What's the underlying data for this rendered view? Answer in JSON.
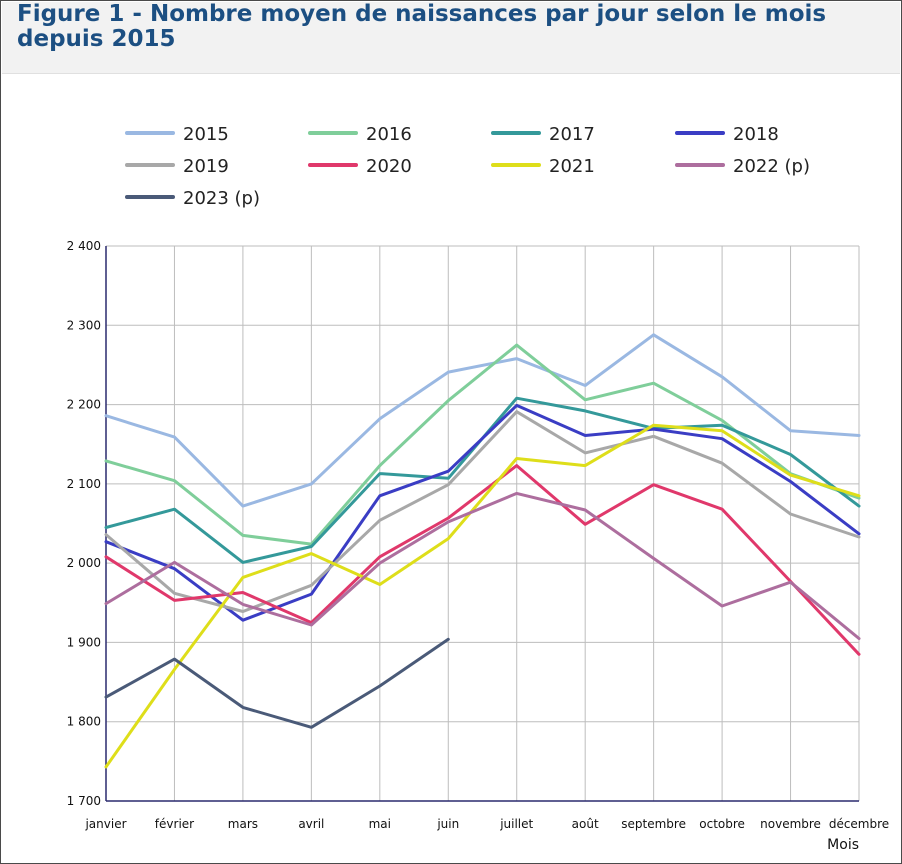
{
  "header": {
    "title": "Figure 1 - Nombre moyen de naissances par jour selon le mois depuis 2015"
  },
  "chart_data": {
    "type": "line",
    "title": "Figure 1 - Nombre moyen de naissances par jour selon le mois depuis 2015",
    "xlabel": "Mois",
    "ylabel": "",
    "categories": [
      "janvier",
      "février",
      "mars",
      "avril",
      "mai",
      "juin",
      "juillet",
      "août",
      "septembre",
      "octobre",
      "novembre",
      "décembre"
    ],
    "ylim": [
      1700,
      2400
    ],
    "yticks": [
      1700,
      1800,
      1900,
      2000,
      2100,
      2200,
      2300,
      2400
    ],
    "ytick_labels": [
      "1 700",
      "1 800",
      "1 900",
      "2 000",
      "2 100",
      "2 200",
      "2 300",
      "2 400"
    ],
    "grid": true,
    "legend_position": "top",
    "series": [
      {
        "name": "2015",
        "color": "#9ab8e2",
        "values": [
          2186,
          2159,
          2072,
          2100,
          2182,
          2241,
          2258,
          2224,
          2288,
          2235,
          2167,
          2161
        ]
      },
      {
        "name": "2016",
        "color": "#7fce9a",
        "values": [
          2129,
          2104,
          2035,
          2024,
          2123,
          2205,
          2275,
          2206,
          2227,
          2180,
          2113,
          2082
        ]
      },
      {
        "name": "2017",
        "color": "#34999a",
        "values": [
          2045,
          2068,
          2001,
          2021,
          2113,
          2107,
          2208,
          2192,
          2170,
          2174,
          2137,
          2072
        ]
      },
      {
        "name": "2018",
        "color": "#3a3dc4",
        "values": [
          2027,
          1993,
          1928,
          1961,
          2085,
          2116,
          2199,
          2161,
          2169,
          2157,
          2103,
          2037
        ]
      },
      {
        "name": "2019",
        "color": "#a8a8a8",
        "values": [
          2036,
          1962,
          1939,
          1972,
          2054,
          2099,
          2191,
          2139,
          2160,
          2126,
          2062,
          2033
        ]
      },
      {
        "name": "2020",
        "color": "#e0386b",
        "values": [
          2008,
          1953,
          1963,
          1925,
          2008,
          2057,
          2123,
          2049,
          2099,
          2068,
          1977,
          1885
        ]
      },
      {
        "name": "2021",
        "color": "#dede1a",
        "values": [
          1743,
          1866,
          1982,
          2012,
          1973,
          2031,
          2132,
          2123,
          2174,
          2167,
          2111,
          2085
        ]
      },
      {
        "name": "2022 (p)",
        "color": "#ad6e9e",
        "values": [
          1949,
          2001,
          1948,
          1922,
          2000,
          2052,
          2088,
          2067,
          2006,
          1946,
          1976,
          1905
        ]
      },
      {
        "name": "2023 (p)",
        "color": "#4a5a78",
        "values": [
          1831,
          1879,
          1818,
          1793,
          1845,
          1904,
          null,
          null,
          null,
          null,
          null,
          null
        ]
      }
    ]
  }
}
